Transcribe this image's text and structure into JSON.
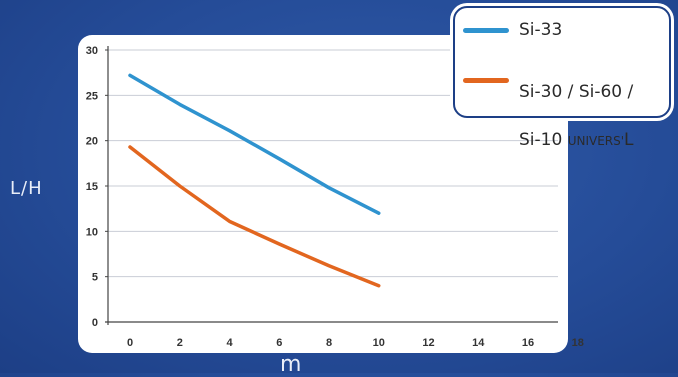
{
  "chart_data": {
    "type": "line",
    "ylabel": "L/H",
    "xlabel": "m",
    "x_ticks": [
      0,
      2,
      4,
      6,
      8,
      10,
      12,
      14,
      16,
      18
    ],
    "y_ticks": [
      0,
      5,
      10,
      15,
      20,
      25,
      30
    ],
    "xlim": [
      0,
      18
    ],
    "ylim": [
      0,
      30
    ],
    "grid": true,
    "legend_position": "top-right",
    "series": [
      {
        "name": "Si-33",
        "color": "#2f93cf",
        "x": [
          0,
          2,
          4,
          6,
          8,
          10
        ],
        "y": [
          27.2,
          24.0,
          21.1,
          18.0,
          14.8,
          12.0
        ]
      },
      {
        "name": "Si-30 / Si-60 / Si-10 UNIVERS'L",
        "color": "#e2661f",
        "x": [
          0,
          2,
          4,
          6,
          8,
          10
        ],
        "y": [
          19.3,
          15.0,
          11.1,
          8.6,
          6.2,
          4.0
        ]
      }
    ]
  },
  "legend": {
    "item1": "Si-33",
    "item2_line1": "Si-30 / Si-60 /",
    "item2_line2": "Si-10 ",
    "item2_small": "UNIVERS'",
    "item2_tail": "L"
  }
}
